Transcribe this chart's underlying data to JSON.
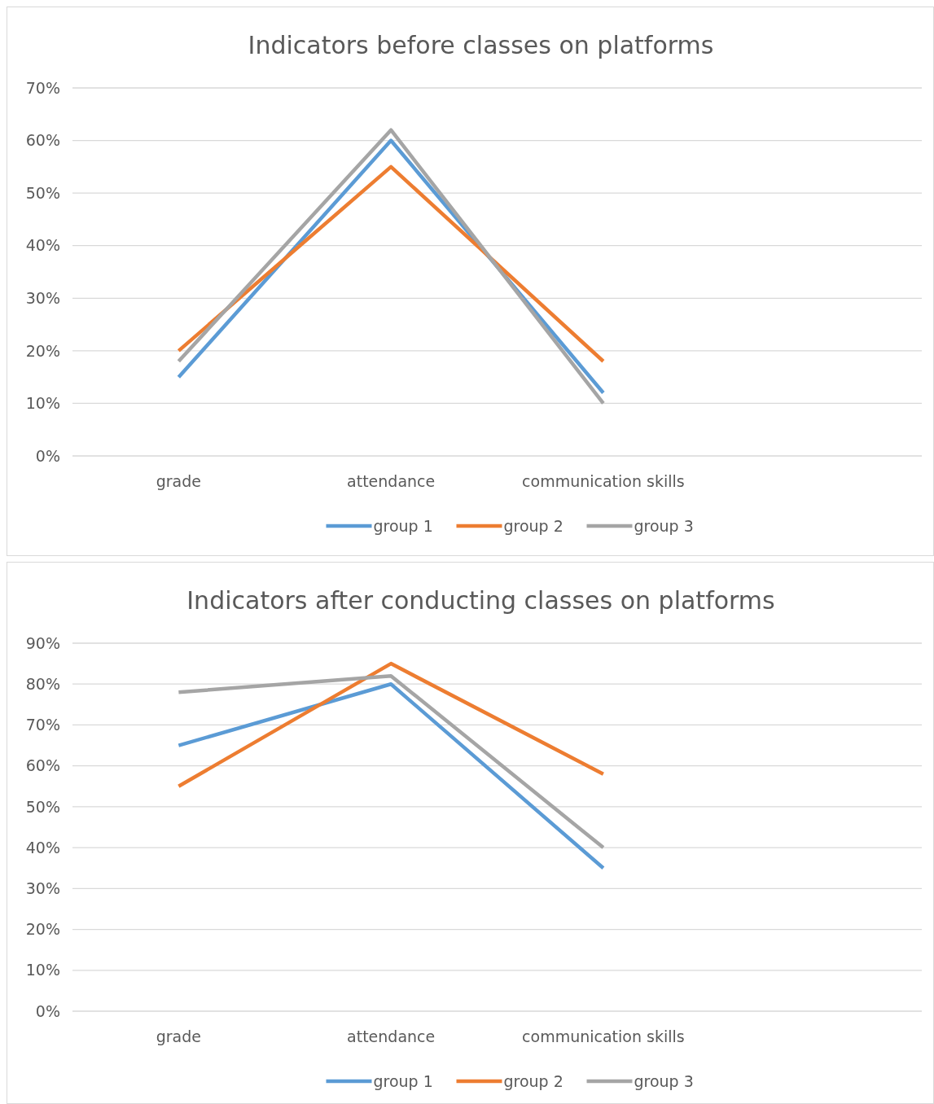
{
  "chart_data": [
    {
      "type": "line",
      "title": "Indicators before classes on platforms",
      "categories": [
        "grade",
        "attendance",
        "communication skills",
        null
      ],
      "ylim": [
        0,
        70
      ],
      "yticks": [
        {
          "value": 0,
          "label": "0%"
        },
        {
          "value": 10,
          "label": "10%"
        },
        {
          "value": 20,
          "label": "20%"
        },
        {
          "value": 30,
          "label": "30%"
        },
        {
          "value": 40,
          "label": "40%"
        },
        {
          "value": 50,
          "label": "50%"
        },
        {
          "value": 60,
          "label": "60%"
        },
        {
          "value": 70,
          "label": "70%"
        }
      ],
      "grid": "y",
      "legend": "bottom",
      "marker": "none",
      "line_style": "solid",
      "series": [
        {
          "name": "group 1",
          "color": "#5b9bd5",
          "values": [
            15,
            60,
            12,
            null
          ]
        },
        {
          "name": "group 2",
          "color": "#ed7d31",
          "values": [
            20,
            55,
            18,
            null
          ]
        },
        {
          "name": "group  3",
          "color": "#a5a5a5",
          "values": [
            18,
            62,
            10,
            null
          ]
        }
      ]
    },
    {
      "type": "line",
      "title": "Indicators after conducting classes on platforms",
      "categories": [
        "grade",
        "attendance",
        "communication skills",
        null
      ],
      "ylim": [
        0,
        90
      ],
      "yticks": [
        {
          "value": 0,
          "label": "0%"
        },
        {
          "value": 10,
          "label": "10%"
        },
        {
          "value": 20,
          "label": "20%"
        },
        {
          "value": 30,
          "label": "30%"
        },
        {
          "value": 40,
          "label": "40%"
        },
        {
          "value": 50,
          "label": "50%"
        },
        {
          "value": 60,
          "label": "60%"
        },
        {
          "value": 70,
          "label": "70%"
        },
        {
          "value": 80,
          "label": "80%"
        },
        {
          "value": 90,
          "label": "90%"
        }
      ],
      "grid": "y",
      "legend": "bottom",
      "marker": "none",
      "line_style": "solid",
      "series": [
        {
          "name": "group 1",
          "color": "#5b9bd5",
          "values": [
            65,
            80,
            35,
            null
          ]
        },
        {
          "name": "group 2",
          "color": "#ed7d31",
          "values": [
            55,
            85,
            58,
            null
          ]
        },
        {
          "name": "group 3",
          "color": "#a5a5a5",
          "values": [
            78,
            82,
            40,
            null
          ]
        }
      ]
    }
  ]
}
